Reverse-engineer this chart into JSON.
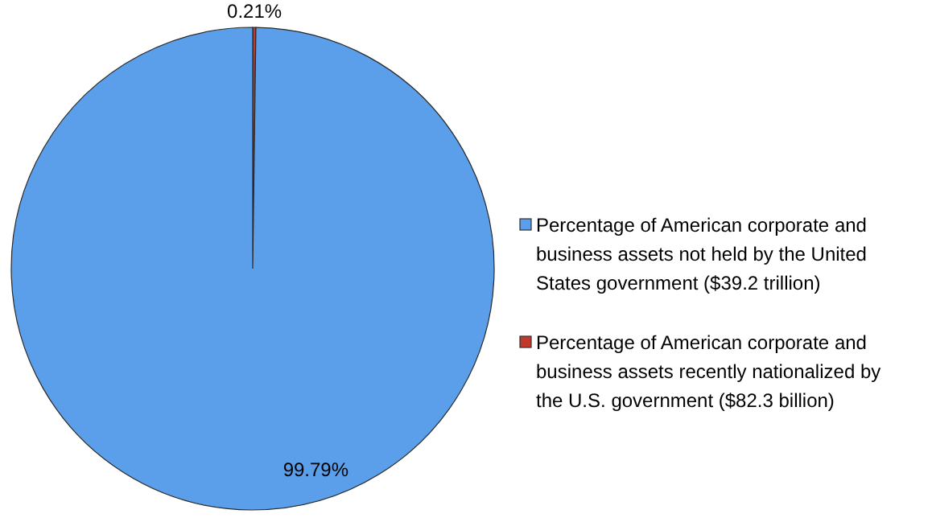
{
  "chart_data": {
    "type": "pie",
    "categories": [
      "Percentage of American corporate and business assets recently nationalized by the U.S. government ($82.3 billion)",
      "Percentage of American corporate and business assets not held by the United States government ($39.2 trillion)"
    ],
    "values": [
      0.21,
      99.79
    ],
    "colors": [
      "#c0392b",
      "#5b9ee9"
    ],
    "data_labels": true,
    "value_labels": [
      "0.21%",
      "99.79%"
    ],
    "legend": "right"
  }
}
